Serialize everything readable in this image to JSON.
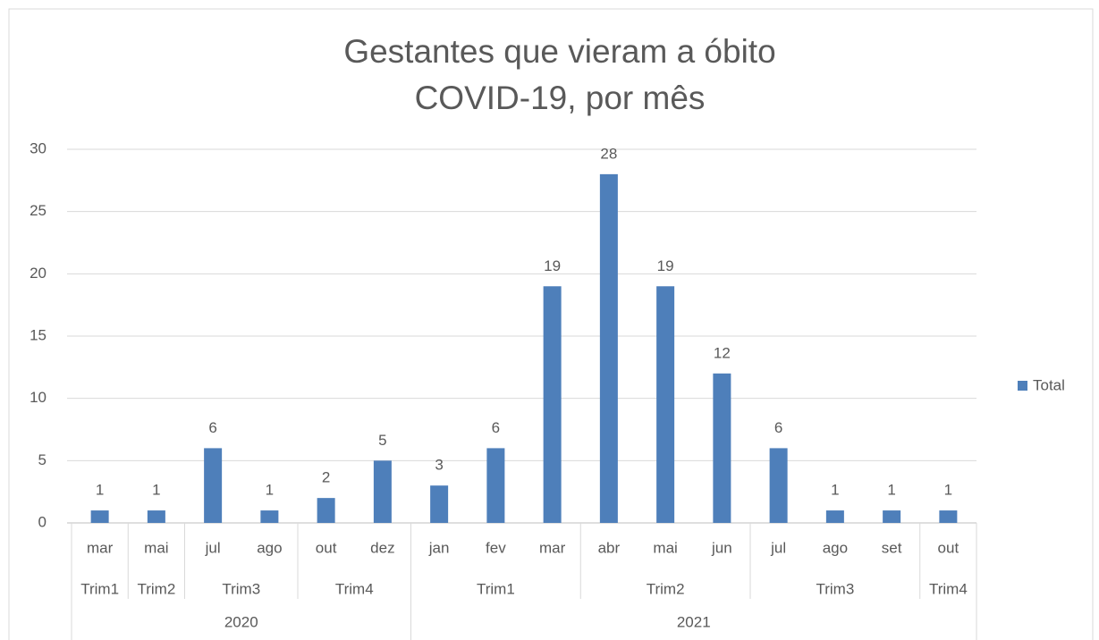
{
  "chart_data": {
    "type": "bar",
    "title": [
      "Gestantes que vieram a óbito",
      "COVID-19, por mês"
    ],
    "categories": [
      "mar",
      "mai",
      "jul",
      "ago",
      "out",
      "dez",
      "jan",
      "fev",
      "mar",
      "abr",
      "mai",
      "jun",
      "jul",
      "ago",
      "set",
      "out"
    ],
    "category_groups": [
      [
        {
          "label": "Trim1",
          "size": 1
        },
        {
          "label": "Trim2",
          "size": 1
        },
        {
          "label": "Trim3",
          "size": 2
        },
        {
          "label": "Trim4",
          "size": 2
        },
        {
          "label": "Trim1",
          "size": 3
        },
        {
          "label": "Trim2",
          "size": 3
        },
        {
          "label": "Trim3",
          "size": 3
        },
        {
          "label": "Trim4",
          "size": 1
        }
      ],
      [
        {
          "label": "2020",
          "size": 6
        },
        {
          "label": "2021",
          "size": 10
        }
      ]
    ],
    "series": [
      {
        "name": "Total",
        "color": "#4e7fba",
        "values": [
          1,
          1,
          6,
          1,
          2,
          5,
          3,
          6,
          19,
          28,
          19,
          12,
          6,
          1,
          1,
          1
        ]
      }
    ],
    "ylim": [
      0,
      30
    ],
    "yticks": [
      0,
      5,
      10,
      15,
      20,
      25,
      30
    ],
    "grid": true,
    "data_labels": true,
    "legend": "right"
  }
}
